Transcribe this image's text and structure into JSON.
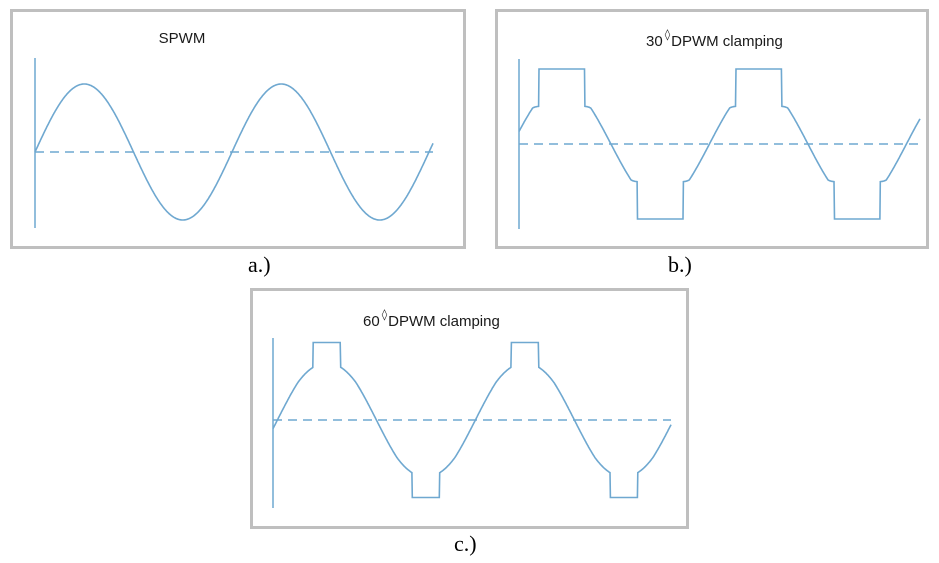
{
  "colors": {
    "wave": "#6fa8d0",
    "border": "#bfbfbf"
  },
  "panels": [
    {
      "title": "SPWM",
      "caption": "a.)",
      "degree_symbol": ""
    },
    {
      "title": "30 DPWM clamping",
      "title_number": "30",
      "title_text": "DPWM clamping",
      "degree_symbol": "◊",
      "caption": "b.)"
    },
    {
      "title": "60 DPWM clamping",
      "title_number": "60",
      "title_text": "DPWM clamping",
      "degree_symbol": "◊",
      "caption": "c.)"
    }
  ]
}
